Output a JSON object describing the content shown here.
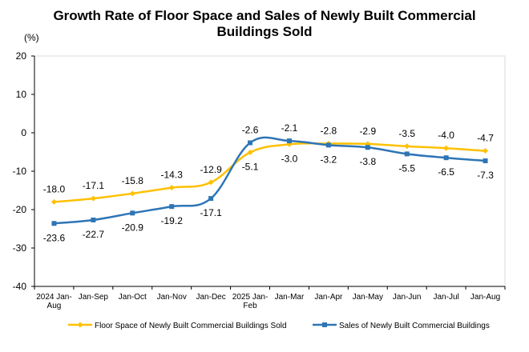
{
  "chart_data": {
    "type": "line",
    "title_lines": [
      "Growth Rate of Floor Space and Sales of Newly Built Commercial",
      "Buildings Sold"
    ],
    "ylabel": "(%)",
    "ylim": [
      -40,
      20
    ],
    "yticks": [
      20,
      10,
      0,
      -10,
      -20,
      -30,
      -40
    ],
    "categories": [
      "2024 Jan-Aug",
      "Jan-Sep",
      "Jan-Oct",
      "Jan-Nov",
      "Jan-Dec",
      "2025 Jan-Feb",
      "Jan-Mar",
      "Jan-Apr",
      "Jan-May",
      "Jan-Jun",
      "Jan-Jul",
      "Jan-Aug"
    ],
    "category_lines": [
      [
        "2024  Jan-",
        "Aug"
      ],
      [
        "Jan-Sep"
      ],
      [
        "Jan-Oct"
      ],
      [
        "Jan-Nov"
      ],
      [
        "Jan-Dec"
      ],
      [
        "2025  Jan-",
        "Feb"
      ],
      [
        "Jan-Mar"
      ],
      [
        "Jan-Apr"
      ],
      [
        "Jan-May"
      ],
      [
        "Jan-Jun"
      ],
      [
        "Jan-Jul"
      ],
      [
        "Jan-Aug"
      ]
    ],
    "grid": false,
    "legend_position": "bottom",
    "series": [
      {
        "name": "Floor Space of Newly Built Commercial Buildings Sold",
        "color": "#FFC000",
        "marker": "diamond",
        "values": [
          -18.0,
          -17.1,
          -15.8,
          -14.3,
          -12.9,
          -5.1,
          -3.0,
          -2.8,
          -2.9,
          -3.5,
          -4.0,
          -4.7
        ],
        "labels": [
          "-18.0",
          "-17.1",
          "-15.8",
          "-14.3",
          "-12.9",
          "-5.1",
          "-3.0",
          "-2.8",
          "-2.9",
          "-3.5",
          "-4.0",
          "-4.7"
        ],
        "label_side": [
          "above",
          "above",
          "above",
          "above",
          "above",
          "below",
          "below",
          "above",
          "above",
          "above",
          "above",
          "above"
        ]
      },
      {
        "name": "Sales of Newly Built Commercial Buildings",
        "color": "#2E75B6",
        "marker": "square",
        "values": [
          -23.6,
          -22.7,
          -20.9,
          -19.2,
          -17.1,
          -2.6,
          -2.1,
          -3.2,
          -3.8,
          -5.5,
          -6.5,
          -7.3
        ],
        "labels": [
          "-23.6",
          "-22.7",
          "-20.9",
          "-19.2",
          "-17.1",
          "-2.6",
          "-2.1",
          "-3.2",
          "-3.8",
          "-5.5",
          "-6.5",
          "-7.3"
        ],
        "label_side": [
          "below",
          "below",
          "below",
          "below",
          "below",
          "above",
          "above",
          "below",
          "below",
          "below",
          "below",
          "below"
        ]
      }
    ]
  }
}
